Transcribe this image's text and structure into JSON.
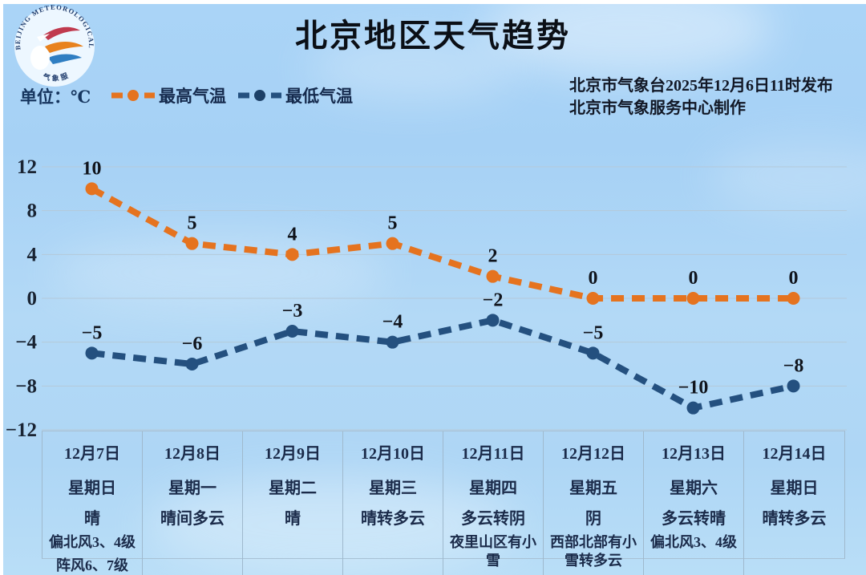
{
  "header": {
    "title": "北京地区天气趋势",
    "issued_line1": "北京市气象台2025年12月6日11时发布",
    "issued_line2": "北京市气象服务中心制作",
    "unit_label": "单位：℃",
    "logo_ring_text": "BEIJING METEOROLOGICAL SERVICE",
    "logo_bottom_text": "气象服务"
  },
  "legend": {
    "high": {
      "label": "最高气温",
      "color": "#e5731f"
    },
    "low": {
      "label": "最低气温",
      "color": "#24507f"
    }
  },
  "colors": {
    "high_line": "#e5731f",
    "low_line": "#24507f",
    "gridline": "#b4c9d9",
    "tick_text": "#1a2433",
    "point_label": "#10141c",
    "sky": "#aad4f7"
  },
  "chart_data": {
    "type": "line",
    "title": "北京地区天气趋势",
    "categories": [
      "12月7日",
      "12月8日",
      "12月9日",
      "12月10日",
      "12月11日",
      "12月12日",
      "12月13日",
      "12月14日"
    ],
    "series": [
      {
        "name": "最高气温",
        "color": "#e5731f",
        "values": [
          10,
          5,
          4,
          5,
          2,
          0,
          0,
          0
        ]
      },
      {
        "name": "最低气温",
        "color": "#24507f",
        "values": [
          -5,
          -6,
          -3,
          -4,
          -2,
          -5,
          -10,
          -8
        ]
      }
    ],
    "y_ticks": [
      12,
      8,
      4,
      0,
      -4,
      -8,
      -12
    ],
    "ylim": [
      -12,
      12
    ],
    "ylabel": "℃",
    "grid": true,
    "line_style": "dashed",
    "legend_position": "top-left",
    "point_labels": true
  },
  "table": {
    "columns": [
      {
        "date": "12月7日",
        "weekday": "星期日",
        "weather": "晴",
        "extra": [
          "偏北风3、4级",
          "阵风6、7级"
        ]
      },
      {
        "date": "12月8日",
        "weekday": "星期一",
        "weather": "晴间多云",
        "extra": []
      },
      {
        "date": "12月9日",
        "weekday": "星期二",
        "weather": "晴",
        "extra": []
      },
      {
        "date": "12月10日",
        "weekday": "星期三",
        "weather": "晴转多云",
        "extra": []
      },
      {
        "date": "12月11日",
        "weekday": "星期四",
        "weather": "多云转阴",
        "extra": [
          "夜里山区有小雪"
        ]
      },
      {
        "date": "12月12日",
        "weekday": "星期五",
        "weather": "阴",
        "extra": [
          "西部北部有小雪转多云"
        ]
      },
      {
        "date": "12月13日",
        "weekday": "星期六",
        "weather": "多云转晴",
        "extra": [
          "偏北风3、4级"
        ]
      },
      {
        "date": "12月14日",
        "weekday": "星期日",
        "weather": "晴转多云",
        "extra": []
      }
    ]
  }
}
